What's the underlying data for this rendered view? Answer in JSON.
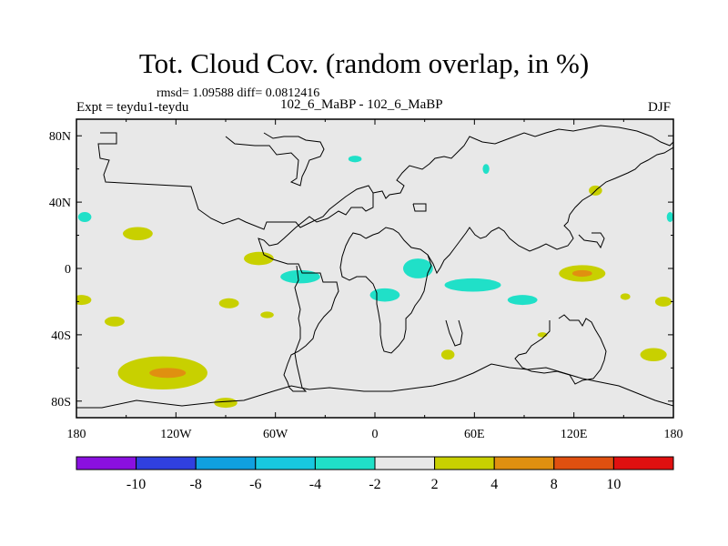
{
  "header": {
    "title": "Tot. Cloud Cov. (random overlap, in %)",
    "stats": "rmsd= 1.09588 diff= 0.0812416",
    "experiment": "Expt = teydu1-teydu",
    "comparison": "102_6_MaBP - 102_6_MaBP",
    "season": "DJF"
  },
  "chart_data": {
    "type": "heatmap",
    "title": "Tot. Cloud Cov. (random overlap, in %)",
    "xlabel": "",
    "ylabel": "",
    "xlim": [
      -180,
      180
    ],
    "ylim": [
      -90,
      90
    ],
    "x_ticks": [
      {
        "value": -180,
        "label": "180"
      },
      {
        "value": -120,
        "label": "120W"
      },
      {
        "value": -60,
        "label": "60W"
      },
      {
        "value": 0,
        "label": "0"
      },
      {
        "value": 60,
        "label": "60E"
      },
      {
        "value": 120,
        "label": "120E"
      },
      {
        "value": 180,
        "label": "180"
      }
    ],
    "y_ticks": [
      {
        "value": 80,
        "label": "80N"
      },
      {
        "value": 40,
        "label": "40N"
      },
      {
        "value": 0,
        "label": "0"
      },
      {
        "value": -40,
        "label": "40S"
      },
      {
        "value": -80,
        "label": "80S"
      }
    ],
    "background_color": "#e8e8e8",
    "colorbar": {
      "boundaries": [
        "-10",
        "-8",
        "-6",
        "-4",
        "-2",
        "2",
        "4",
        "8",
        "10"
      ],
      "colors": [
        "#8a10e0",
        "#3040e0",
        "#10a0e0",
        "#18c8e0",
        "#20e0c8",
        "#e8e8e8",
        "#c8d000",
        "#e09010",
        "#e05010",
        "#e01010"
      ]
    },
    "anomaly_regions": [
      {
        "lon": -175,
        "lat": 31,
        "dlon": 4,
        "dlat": 3,
        "level": "-4 to -2",
        "color": "#20e0c8"
      },
      {
        "lon": -143,
        "lat": 21,
        "dlon": 9,
        "dlat": 4,
        "level": "2 to 4",
        "color": "#c8d000"
      },
      {
        "lon": -70,
        "lat": 6,
        "dlon": 9,
        "dlat": 4,
        "level": "2 to 4",
        "color": "#c8d000"
      },
      {
        "lon": -177,
        "lat": -19,
        "dlon": 6,
        "dlat": 3,
        "level": "2 to 4",
        "color": "#c8d000"
      },
      {
        "lon": -157,
        "lat": -32,
        "dlon": 6,
        "dlat": 3,
        "level": "2 to 4",
        "color": "#c8d000"
      },
      {
        "lon": -88,
        "lat": -21,
        "dlon": 6,
        "dlat": 3,
        "level": "2 to 4",
        "color": "#c8d000"
      },
      {
        "lon": -65,
        "lat": -28,
        "dlon": 4,
        "dlat": 2,
        "level": "2 to 4",
        "color": "#c8d000"
      },
      {
        "lon": -45,
        "lat": -5,
        "dlon": 12,
        "dlat": 4,
        "level": "-4 to -2",
        "color": "#20e0c8"
      },
      {
        "lon": -128,
        "lat": -63,
        "dlon": 27,
        "dlat": 10,
        "level": "2 to 4",
        "color": "#c8d000"
      },
      {
        "lon": -125,
        "lat": -63,
        "dlon": 11,
        "dlat": 3,
        "level": "4 to 8",
        "color": "#e09010"
      },
      {
        "lon": -90,
        "lat": -81,
        "dlon": 7,
        "dlat": 3,
        "level": "2 to 4",
        "color": "#c8d000"
      },
      {
        "lon": -12,
        "lat": 66,
        "dlon": 4,
        "dlat": 2,
        "level": "-4 to -2",
        "color": "#20e0c8"
      },
      {
        "lon": 6,
        "lat": -16,
        "dlon": 9,
        "dlat": 4,
        "level": "-4 to -2",
        "color": "#20e0c8"
      },
      {
        "lon": 26,
        "lat": 0,
        "dlon": 9,
        "dlat": 6,
        "level": "-4 to -2",
        "color": "#20e0c8"
      },
      {
        "lon": 59,
        "lat": -10,
        "dlon": 17,
        "dlat": 4,
        "level": "-4 to -2",
        "color": "#20e0c8"
      },
      {
        "lon": 89,
        "lat": -19,
        "dlon": 9,
        "dlat": 3,
        "level": "-4 to -2",
        "color": "#20e0c8"
      },
      {
        "lon": 67,
        "lat": 60,
        "dlon": 2,
        "dlat": 3,
        "level": "-4 to -2",
        "color": "#20e0c8"
      },
      {
        "lon": 125,
        "lat": -3,
        "dlon": 14,
        "dlat": 5,
        "level": "2 to 4",
        "color": "#c8d000"
      },
      {
        "lon": 125,
        "lat": -3,
        "dlon": 6,
        "dlat": 2,
        "level": "4 to 8",
        "color": "#e09010"
      },
      {
        "lon": 133,
        "lat": 47,
        "dlon": 4,
        "dlat": 3,
        "level": "2 to 4",
        "color": "#c8d000"
      },
      {
        "lon": 168,
        "lat": -52,
        "dlon": 8,
        "dlat": 4,
        "level": "2 to 4",
        "color": "#c8d000"
      },
      {
        "lon": 174,
        "lat": -20,
        "dlon": 5,
        "dlat": 3,
        "level": "2 to 4",
        "color": "#c8d000"
      },
      {
        "lon": 151,
        "lat": -17,
        "dlon": 3,
        "dlat": 2,
        "level": "2 to 4",
        "color": "#c8d000"
      },
      {
        "lon": 44,
        "lat": -52,
        "dlon": 4,
        "dlat": 3,
        "level": "2 to 4",
        "color": "#c8d000"
      },
      {
        "lon": 101,
        "lat": -40,
        "dlon": 3,
        "dlat": 1.5,
        "level": "2 to 4",
        "color": "#c8d000"
      },
      {
        "lon": 178,
        "lat": 31,
        "dlon": 2,
        "dlat": 3,
        "level": "-4 to -2",
        "color": "#20e0c8"
      }
    ]
  }
}
